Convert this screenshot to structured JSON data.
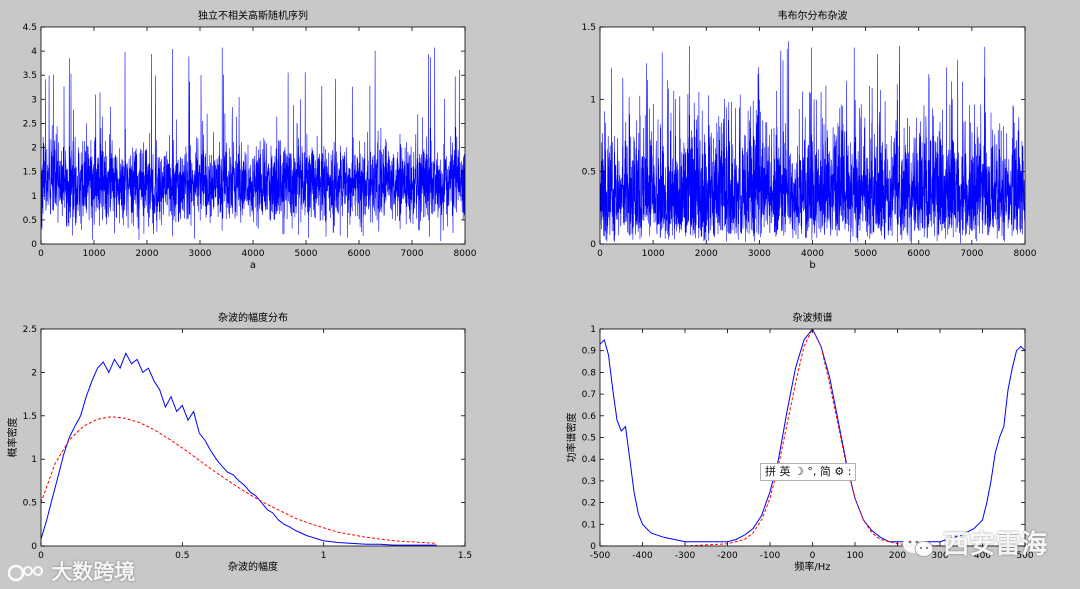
{
  "colors": {
    "background": "#c8c8c8",
    "axes": "#ffffff",
    "signal": "#0000ff",
    "fit": "#ff0000"
  },
  "chart_data": [
    {
      "type": "line",
      "title": "独立不相关高斯随机序列",
      "xlabel": "a",
      "ylabel": "",
      "xlim": [
        0,
        8000
      ],
      "ylim": [
        0,
        4.5
      ],
      "xticks": [
        0,
        1000,
        2000,
        3000,
        4000,
        5000,
        6000,
        7000,
        8000
      ],
      "yticks": [
        0,
        0.5,
        1,
        1.5,
        2,
        2.5,
        3,
        3.5,
        4,
        4.5
      ],
      "series": [
        {
          "style": "dense-noise",
          "n_points": 8000,
          "mean": 1.25,
          "typical_range": [
            0.3,
            2.4
          ],
          "peak_max": 4.1
        }
      ],
      "grid": false
    },
    {
      "type": "line",
      "title": "韦布尔分布杂波",
      "xlabel": "b",
      "ylabel": "",
      "xlim": [
        0,
        8000
      ],
      "ylim": [
        0,
        1.5
      ],
      "xticks": [
        0,
        1000,
        2000,
        3000,
        4000,
        5000,
        6000,
        7000,
        8000
      ],
      "yticks": [
        0,
        0.5,
        1,
        1.5
      ],
      "series": [
        {
          "style": "dense-noise",
          "n_points": 8000,
          "mean": 0.38,
          "typical_range": [
            0.05,
            0.8
          ],
          "peak_max": 1.42
        }
      ],
      "grid": false
    },
    {
      "type": "line",
      "title": "杂波的幅度分布",
      "xlabel": "杂波的幅度",
      "ylabel": "概率密度",
      "xlim": [
        0,
        1.5
      ],
      "ylim": [
        0,
        2.5
      ],
      "xticks": [
        0,
        0.5,
        1,
        1.5
      ],
      "yticks": [
        0,
        0.5,
        1,
        1.5,
        2,
        2.5
      ],
      "series": [
        {
          "style": "solid",
          "color": "#0000ff",
          "x": [
            0.0,
            0.02,
            0.04,
            0.06,
            0.08,
            0.1,
            0.12,
            0.14,
            0.16,
            0.18,
            0.2,
            0.22,
            0.24,
            0.26,
            0.28,
            0.3,
            0.32,
            0.34,
            0.36,
            0.38,
            0.4,
            0.42,
            0.44,
            0.46,
            0.48,
            0.5,
            0.52,
            0.54,
            0.56,
            0.58,
            0.6,
            0.62,
            0.64,
            0.66,
            0.68,
            0.7,
            0.72,
            0.74,
            0.76,
            0.78,
            0.8,
            0.82,
            0.84,
            0.86,
            0.88,
            0.9,
            0.92,
            0.94,
            0.96,
            0.98,
            1.0,
            1.05,
            1.1,
            1.15,
            1.2,
            1.25,
            1.3,
            1.35,
            1.4
          ],
          "y": [
            0.08,
            0.3,
            0.55,
            0.8,
            1.05,
            1.25,
            1.38,
            1.5,
            1.72,
            1.9,
            2.05,
            2.12,
            2.0,
            2.15,
            2.05,
            2.22,
            2.1,
            2.15,
            2.0,
            2.05,
            1.9,
            1.8,
            1.6,
            1.72,
            1.55,
            1.62,
            1.45,
            1.55,
            1.3,
            1.22,
            1.1,
            1.0,
            0.92,
            0.85,
            0.82,
            0.75,
            0.7,
            0.62,
            0.58,
            0.5,
            0.42,
            0.38,
            0.3,
            0.25,
            0.22,
            0.18,
            0.15,
            0.12,
            0.1,
            0.08,
            0.06,
            0.04,
            0.03,
            0.02,
            0.02,
            0.01,
            0.01,
            0.01,
            0.01
          ]
        },
        {
          "style": "dashed",
          "color": "#ff0000",
          "x": [
            0.0,
            0.05,
            0.1,
            0.15,
            0.2,
            0.25,
            0.3,
            0.35,
            0.4,
            0.45,
            0.5,
            0.55,
            0.6,
            0.65,
            0.7,
            0.75,
            0.8,
            0.85,
            0.9,
            0.95,
            1.0,
            1.05,
            1.1,
            1.15,
            1.2,
            1.25,
            1.3,
            1.35,
            1.4
          ],
          "y": [
            0.5,
            0.95,
            1.22,
            1.38,
            1.46,
            1.49,
            1.47,
            1.42,
            1.34,
            1.24,
            1.13,
            1.01,
            0.89,
            0.78,
            0.67,
            0.57,
            0.48,
            0.4,
            0.32,
            0.26,
            0.21,
            0.16,
            0.13,
            0.1,
            0.08,
            0.06,
            0.05,
            0.04,
            0.03
          ]
        }
      ],
      "grid": false
    },
    {
      "type": "line",
      "title": "杂波频谱",
      "xlabel": "频率/Hz",
      "ylabel": "功率谱密度",
      "xlim": [
        -500,
        500
      ],
      "ylim": [
        0,
        1
      ],
      "xticks": [
        -500,
        -400,
        -300,
        -200,
        -100,
        0,
        100,
        200,
        300,
        400,
        500
      ],
      "yticks": [
        0,
        0.1,
        0.2,
        0.3,
        0.4,
        0.5,
        0.6,
        0.7,
        0.8,
        0.9,
        1
      ],
      "series": [
        {
          "style": "solid",
          "color": "#0000ff",
          "x": [
            -500,
            -490,
            -480,
            -470,
            -460,
            -450,
            -440,
            -430,
            -420,
            -410,
            -400,
            -380,
            -350,
            -300,
            -250,
            -200,
            -180,
            -160,
            -140,
            -120,
            -100,
            -80,
            -60,
            -40,
            -20,
            0,
            20,
            40,
            60,
            80,
            100,
            120,
            140,
            160,
            180,
            200,
            250,
            300,
            350,
            380,
            400,
            410,
            420,
            430,
            440,
            450,
            460,
            470,
            480,
            490,
            500
          ],
          "y": [
            0.93,
            0.95,
            0.88,
            0.72,
            0.58,
            0.53,
            0.55,
            0.4,
            0.25,
            0.15,
            0.1,
            0.06,
            0.04,
            0.02,
            0.02,
            0.02,
            0.03,
            0.05,
            0.08,
            0.14,
            0.25,
            0.4,
            0.62,
            0.82,
            0.95,
            1.0,
            0.92,
            0.78,
            0.58,
            0.38,
            0.22,
            0.12,
            0.07,
            0.04,
            0.02,
            0.02,
            0.02,
            0.02,
            0.05,
            0.08,
            0.12,
            0.2,
            0.3,
            0.43,
            0.5,
            0.55,
            0.72,
            0.82,
            0.9,
            0.92,
            0.9
          ]
        },
        {
          "style": "dashed",
          "color": "#ff0000",
          "x": [
            -500,
            -400,
            -300,
            -200,
            -160,
            -140,
            -120,
            -100,
            -80,
            -60,
            -40,
            -20,
            0,
            20,
            40,
            60,
            80,
            100,
            120,
            140,
            160,
            200,
            300,
            400,
            500
          ],
          "y": [
            0,
            0,
            0,
            0.01,
            0.03,
            0.06,
            0.12,
            0.22,
            0.37,
            0.56,
            0.75,
            0.92,
            1.0,
            0.92,
            0.75,
            0.56,
            0.37,
            0.22,
            0.12,
            0.06,
            0.03,
            0.01,
            0,
            0,
            0
          ]
        }
      ],
      "grid": false
    }
  ],
  "overlay": {
    "ime_toolbar": "拼 英 ☽ °, 简 ⚙ :",
    "watermark_left": "大数跨境",
    "watermark_right": "西安雷海"
  }
}
